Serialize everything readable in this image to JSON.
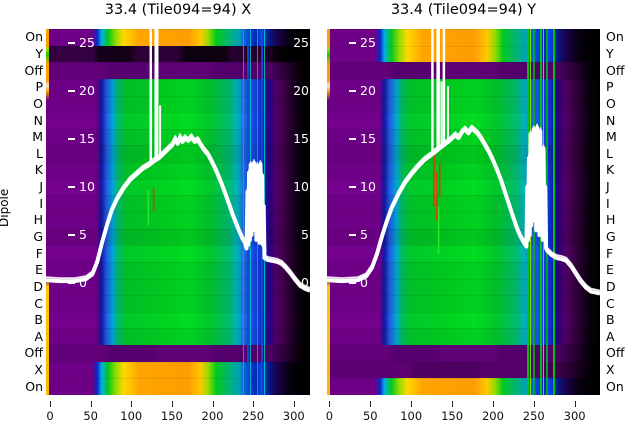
{
  "ylabel": "Dipole",
  "dipole_labels": [
    "On",
    "Y",
    "Off",
    "P",
    "O",
    "N",
    "M",
    "L",
    "K",
    "J",
    "I",
    "H",
    "G",
    "F",
    "E",
    "D",
    "C",
    "B",
    "A",
    "Off",
    "X",
    "On"
  ],
  "xticks": [
    0,
    50,
    100,
    150,
    200,
    250,
    300
  ],
  "overlay_yticks": [
    25,
    20,
    15,
    10,
    5,
    0
  ],
  "colors": {
    "background_purple": "#6E0087",
    "block_green": "#00C81E",
    "band_orange": "#FF9C00",
    "overlay_line": "#FFFFFF",
    "fade": "#000000"
  },
  "panels": [
    {
      "title": "33.4 (Tile094=94) X",
      "pol": "X",
      "row_types": [
        "rainbow",
        "dark",
        "off",
        "block",
        "block",
        "block",
        "block",
        "block",
        "block",
        "block",
        "block",
        "block",
        "block",
        "block",
        "block",
        "block",
        "block",
        "block",
        "block",
        "off",
        "rainbow",
        "rainbow"
      ],
      "show_right_yticks": true
    },
    {
      "title": "33.4 (Tile094=94) Y",
      "pol": "Y",
      "row_types": [
        "rainbow",
        "rainbow",
        "off",
        "block",
        "block",
        "block",
        "block",
        "block",
        "block",
        "block",
        "block",
        "block",
        "block",
        "block",
        "block",
        "block",
        "block",
        "block",
        "block",
        "off",
        "dim",
        "rainbow"
      ],
      "show_right_yticks": false
    }
  ],
  "chart_data": {
    "type": "heatmap",
    "title_left": "33.4 (Tile094=94) X",
    "title_right": "33.4 (Tile094=94) Y",
    "xlabel": "",
    "ylabel": "Dipole",
    "x_axis_ticks": [
      0,
      50,
      100,
      150,
      200,
      250,
      300
    ],
    "y_categories": [
      "On",
      "Y",
      "Off",
      "P",
      "O",
      "N",
      "M",
      "L",
      "K",
      "J",
      "I",
      "H",
      "G",
      "F",
      "E",
      "D",
      "C",
      "B",
      "A",
      "Off",
      "X",
      "On"
    ],
    "overlay_axis_ticks": [
      25,
      20,
      15,
      10,
      5,
      0
    ],
    "legend": "none",
    "grid": false,
    "panels": [
      {
        "pol": "X",
        "xmin": -5,
        "xmax": 320,
        "line_profile": [
          [
            -5,
            0.3
          ],
          [
            12,
            0.2
          ],
          [
            30,
            0.2
          ],
          [
            44,
            0.4
          ],
          [
            52,
            0.9
          ],
          [
            58,
            2.2
          ],
          [
            64,
            4.2
          ],
          [
            70,
            6.0
          ],
          [
            76,
            7.6
          ],
          [
            82,
            8.7
          ],
          [
            90,
            9.8
          ],
          [
            98,
            10.7
          ],
          [
            106,
            11.3
          ],
          [
            114,
            11.9
          ],
          [
            122,
            12.3
          ],
          [
            128,
            12.7
          ],
          [
            134,
            13.0
          ],
          [
            140,
            13.5
          ],
          [
            146,
            14.0
          ],
          [
            150,
            14.3
          ],
          [
            154,
            15.0
          ],
          [
            157,
            14.5
          ],
          [
            160,
            15.2
          ],
          [
            163,
            14.7
          ],
          [
            166,
            15.1
          ],
          [
            170,
            14.8
          ],
          [
            174,
            15.2
          ],
          [
            178,
            14.7
          ],
          [
            182,
            14.9
          ],
          [
            186,
            14.3
          ],
          [
            190,
            13.8
          ],
          [
            195,
            13.3
          ],
          [
            200,
            12.5
          ],
          [
            205,
            11.6
          ],
          [
            210,
            10.6
          ],
          [
            215,
            9.5
          ],
          [
            220,
            8.3
          ],
          [
            225,
            7.1
          ],
          [
            230,
            6.0
          ],
          [
            234,
            5.2
          ],
          [
            237,
            4.6
          ],
          [
            240,
            4.2
          ],
          [
            242,
            3.6
          ],
          [
            243,
            9.5
          ],
          [
            244,
            4.0
          ],
          [
            245,
            11.5
          ],
          [
            246,
            4.5
          ],
          [
            247,
            12.3
          ],
          [
            248,
            5.0
          ],
          [
            249,
            10.5
          ],
          [
            250,
            5.5
          ],
          [
            251,
            12.5
          ],
          [
            252,
            6.0
          ],
          [
            253,
            11.0
          ],
          [
            254,
            4.5
          ],
          [
            255,
            12.2
          ],
          [
            256,
            5.2
          ],
          [
            257,
            11.5
          ],
          [
            258,
            4.2
          ],
          [
            259,
            12.4
          ],
          [
            260,
            5.8
          ],
          [
            261,
            11.2
          ],
          [
            262,
            4.0
          ],
          [
            263,
            8.0
          ],
          [
            264,
            2.6
          ],
          [
            268,
            2.4
          ],
          [
            274,
            2.3
          ],
          [
            280,
            2.2
          ],
          [
            285,
            2.0
          ],
          [
            290,
            1.6
          ],
          [
            296,
            1.0
          ],
          [
            302,
            0.3
          ],
          [
            308,
            -0.3
          ],
          [
            314,
            -0.6
          ],
          [
            320,
            -0.8
          ]
        ],
        "spikes_full": [
          [
            124,
            2.5
          ],
          [
            131,
            4
          ]
        ],
        "spikes_partial": [
          [
            135.5,
            13,
            18.5
          ]
        ],
        "red_marks": [
          [
            127.5,
            7.5,
            10.0
          ]
        ],
        "green_marks": [
          [
            121,
            6.0,
            9.7
          ]
        ]
      },
      {
        "pol": "Y",
        "xmin": -3,
        "xmax": 331,
        "line_profile": [
          [
            -3,
            0.3
          ],
          [
            15,
            0.2
          ],
          [
            35,
            0.3
          ],
          [
            45,
            0.7
          ],
          [
            52,
            1.6
          ],
          [
            58,
            3.0
          ],
          [
            64,
            4.8
          ],
          [
            70,
            6.4
          ],
          [
            76,
            7.8
          ],
          [
            84,
            9.2
          ],
          [
            92,
            10.4
          ],
          [
            100,
            11.3
          ],
          [
            108,
            12.1
          ],
          [
            116,
            12.8
          ],
          [
            124,
            13.3
          ],
          [
            130,
            13.7
          ],
          [
            136,
            14.1
          ],
          [
            142,
            14.5
          ],
          [
            148,
            14.9
          ],
          [
            154,
            15.4
          ],
          [
            158,
            15.1
          ],
          [
            162,
            15.7
          ],
          [
            166,
            16.0
          ],
          [
            170,
            15.6
          ],
          [
            174,
            16.1
          ],
          [
            178,
            15.8
          ],
          [
            182,
            15.5
          ],
          [
            186,
            15.0
          ],
          [
            190,
            14.4
          ],
          [
            195,
            13.7
          ],
          [
            200,
            12.8
          ],
          [
            205,
            11.8
          ],
          [
            210,
            10.7
          ],
          [
            215,
            9.4
          ],
          [
            220,
            8.1
          ],
          [
            225,
            6.8
          ],
          [
            230,
            5.6
          ],
          [
            234,
            4.8
          ],
          [
            238,
            4.2
          ],
          [
            241,
            3.8
          ],
          [
            242,
            10.0
          ],
          [
            243,
            4.5
          ],
          [
            244,
            13.0
          ],
          [
            245,
            5.0
          ],
          [
            246,
            15.5
          ],
          [
            247,
            6.0
          ],
          [
            248,
            14.0
          ],
          [
            249,
            7.0
          ],
          [
            250,
            16.0
          ],
          [
            251,
            6.5
          ],
          [
            252,
            15.0
          ],
          [
            253,
            5.5
          ],
          [
            254,
            16.2
          ],
          [
            255,
            7.0
          ],
          [
            256,
            14.5
          ],
          [
            257,
            5.0
          ],
          [
            258,
            15.8
          ],
          [
            259,
            6.0
          ],
          [
            260,
            13.0
          ],
          [
            261,
            4.5
          ],
          [
            262,
            14.0
          ],
          [
            263,
            5.0
          ],
          [
            264,
            10.0
          ],
          [
            265,
            3.6
          ],
          [
            267,
            3.3
          ],
          [
            272,
            2.9
          ],
          [
            278,
            2.6
          ],
          [
            284,
            2.5
          ],
          [
            290,
            2.3
          ],
          [
            296,
            1.7
          ],
          [
            302,
            0.9
          ],
          [
            308,
            0.1
          ],
          [
            314,
            -0.5
          ],
          [
            320,
            -0.9
          ],
          [
            326,
            -1.0
          ],
          [
            331,
            -1.1
          ]
        ],
        "spikes_full": [
          [
            126,
            2.5
          ],
          [
            133,
            3.5
          ],
          [
            140,
            2.5
          ]
        ],
        "spikes_partial": [
          [
            145,
            14.5,
            20.5
          ],
          [
            137,
            14.0,
            21.0
          ]
        ],
        "red_marks": [
          [
            128,
            8.0,
            13.5
          ],
          [
            131.5,
            6.5,
            11.5
          ],
          [
            135,
            9.0,
            12.5
          ]
        ],
        "green_marks": [
          [
            133.5,
            3.0,
            8.0
          ]
        ]
      }
    ]
  }
}
